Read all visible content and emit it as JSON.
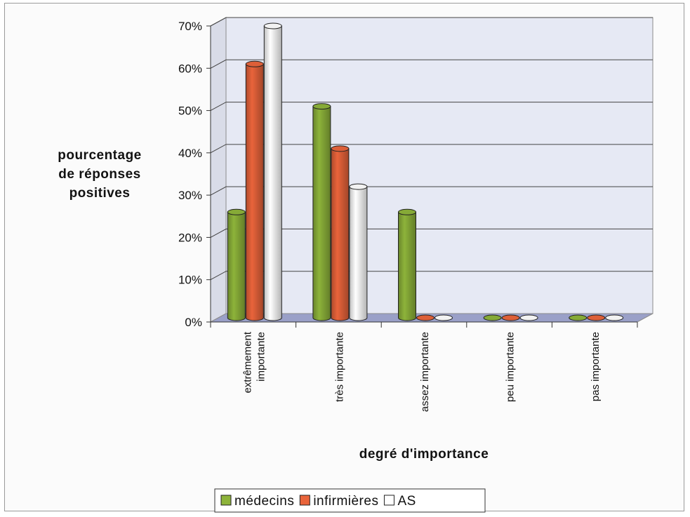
{
  "chart_data": {
    "type": "bar",
    "style": "3d-cylinder",
    "categories": [
      [
        "extrêmement",
        "importante"
      ],
      [
        "très importante"
      ],
      [
        "assez importante"
      ],
      [
        "peu importante"
      ],
      [
        "pas importante"
      ]
    ],
    "series": [
      {
        "name": "médecins",
        "values": [
          25,
          50,
          25,
          0,
          0
        ],
        "color": "#8db33a"
      },
      {
        "name": "infirmières",
        "values": [
          60,
          40,
          0,
          0,
          0
        ],
        "color": "#e9643b"
      },
      {
        "name": "AS",
        "values": [
          69,
          31,
          0,
          0,
          0
        ],
        "color": "#ffffff"
      }
    ],
    "ylabel": [
      "pourcentage",
      "de réponses",
      "positives"
    ],
    "xlabel": "degré d'importance",
    "ylim": [
      0,
      70
    ],
    "yticks": [
      "0%",
      "10%",
      "20%",
      "30%",
      "40%",
      "50%",
      "60%",
      "70%"
    ],
    "grid": true,
    "legend": "bottom",
    "wall_color": "#e6e9f4",
    "floor_color": "#9aa0c8"
  }
}
